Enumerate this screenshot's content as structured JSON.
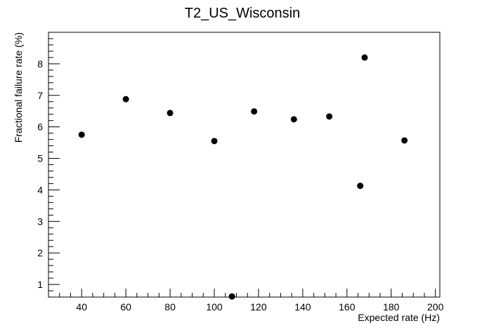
{
  "chart_data": {
    "type": "scatter",
    "title": "T2_US_Wisconsin",
    "xlabel": "Expected rate (Hz)",
    "ylabel": "Fractional failure rate (%)",
    "xlim": [
      25,
      202
    ],
    "ylim": [
      0.6,
      9.0
    ],
    "x_ticks": [
      40,
      60,
      80,
      100,
      120,
      140,
      160,
      180,
      200
    ],
    "y_ticks": [
      1,
      2,
      3,
      4,
      5,
      6,
      7,
      8
    ],
    "x_minor_step": 5,
    "y_minor_step": 0.2,
    "grid": false,
    "marker_color": "#000000",
    "points": [
      {
        "x": 40,
        "y": 5.75
      },
      {
        "x": 60,
        "y": 6.88
      },
      {
        "x": 80,
        "y": 6.44
      },
      {
        "x": 100,
        "y": 5.55
      },
      {
        "x": 108,
        "y": 0.62
      },
      {
        "x": 118,
        "y": 6.49
      },
      {
        "x": 136,
        "y": 6.24
      },
      {
        "x": 152,
        "y": 6.33
      },
      {
        "x": 166,
        "y": 4.13
      },
      {
        "x": 168,
        "y": 8.2
      },
      {
        "x": 186,
        "y": 5.57
      }
    ]
  }
}
